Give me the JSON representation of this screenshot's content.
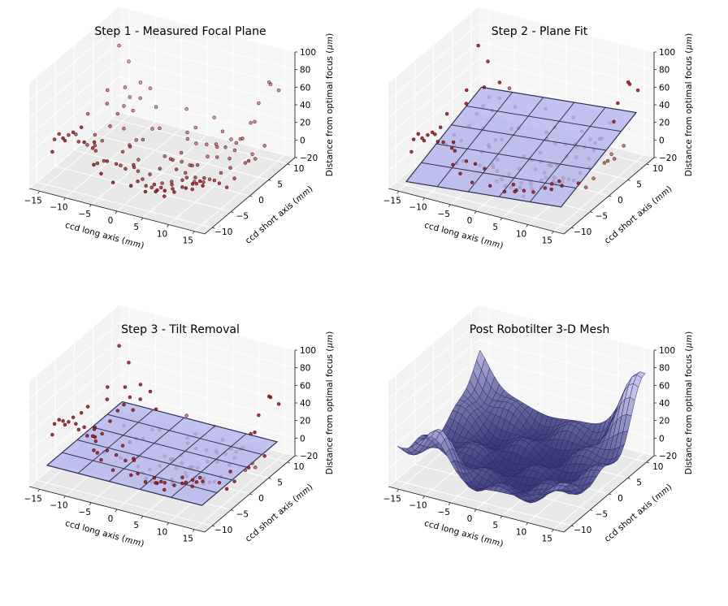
{
  "chart_data": [
    {
      "type": "scatter",
      "variant": "3d-scatter",
      "title": "Step 1 - Measured Focal Plane",
      "xlabel": "ccd long axis ($mm$)",
      "ylabel": "ccd short axis ($mm$)",
      "zlabel": "Distance from optimal focus ($\\mu m$)",
      "xlim": [
        -17,
        17
      ],
      "ylim": [
        -12,
        12
      ],
      "zlim": [
        -20,
        100
      ],
      "xticks": [
        -15,
        -10,
        -5,
        0,
        5,
        10,
        15
      ],
      "yticks": [
        -10,
        -5,
        0,
        5,
        10
      ],
      "zticks": [
        -20,
        0,
        20,
        40,
        60,
        80,
        100
      ],
      "grid": true,
      "marker_color": "#8b1a1a",
      "show_points": true,
      "show_plane": false,
      "show_mesh": false,
      "plane_tilted": true
    },
    {
      "type": "scatter",
      "variant": "3d-scatter-with-plane",
      "title": "Step 2 - Plane Fit",
      "xlabel": "ccd long axis ($mm$)",
      "ylabel": "ccd short axis ($mm$)",
      "zlabel": "Distance from optimal focus ($\\mu m$)",
      "xlim": [
        -17,
        17
      ],
      "ylim": [
        -12,
        12
      ],
      "zlim": [
        -20,
        100
      ],
      "xticks": [
        -15,
        -10,
        -5,
        0,
        5,
        10,
        15
      ],
      "yticks": [
        -10,
        -5,
        0,
        5,
        10
      ],
      "zticks": [
        -20,
        0,
        20,
        40,
        60,
        80,
        100
      ],
      "grid": true,
      "marker_color": "#8b1a1a",
      "plane_color": "#b3b3f0",
      "plane_corners_z": {
        "x_min_y_min": -21,
        "x_max_y_min": -2,
        "x_min_y_max": 21,
        "x_max_y_max": 40
      },
      "show_points": true,
      "show_plane": true,
      "show_mesh": false,
      "plane_tilted": true
    },
    {
      "type": "scatter",
      "variant": "3d-scatter-with-plane",
      "title": "Step 3 - Tilt Removal",
      "xlabel": "ccd long axis ($mm$)",
      "ylabel": "ccd short axis ($mm$)",
      "zlabel": "Distance from optimal focus ($\\mu m$)",
      "xlim": [
        -17,
        17
      ],
      "ylim": [
        -12,
        12
      ],
      "zlim": [
        -20,
        100
      ],
      "xticks": [
        -15,
        -10,
        -5,
        0,
        5,
        10,
        15
      ],
      "yticks": [
        -10,
        -5,
        0,
        5,
        10
      ],
      "zticks": [
        -20,
        0,
        20,
        40,
        60,
        80,
        100
      ],
      "grid": true,
      "marker_color": "#8b1a1a",
      "plane_color": "#b3b3f0",
      "plane_level": 0,
      "show_points": true,
      "show_plane": true,
      "show_mesh": false,
      "plane_tilted": false
    },
    {
      "type": "area",
      "variant": "3d-surface-mesh",
      "title": "Post Robotilter 3-D Mesh",
      "xlabel": "ccd long axis ($mm$)",
      "ylabel": "ccd short axis ($mm$)",
      "zlabel": "Distance from optimal focus ($\\mu m$)",
      "xlim": [
        -17,
        17
      ],
      "ylim": [
        -12,
        12
      ],
      "zlim": [
        -20,
        100
      ],
      "xticks": [
        -15,
        -10,
        -5,
        0,
        5,
        10,
        15
      ],
      "yticks": [
        -10,
        -5,
        0,
        5,
        10
      ],
      "zticks": [
        -20,
        0,
        20,
        40,
        60,
        80,
        100
      ],
      "grid": true,
      "mesh_color": "#2a2a66",
      "show_points": false,
      "show_plane": false,
      "show_mesh": true,
      "plane_tilted": false
    }
  ]
}
